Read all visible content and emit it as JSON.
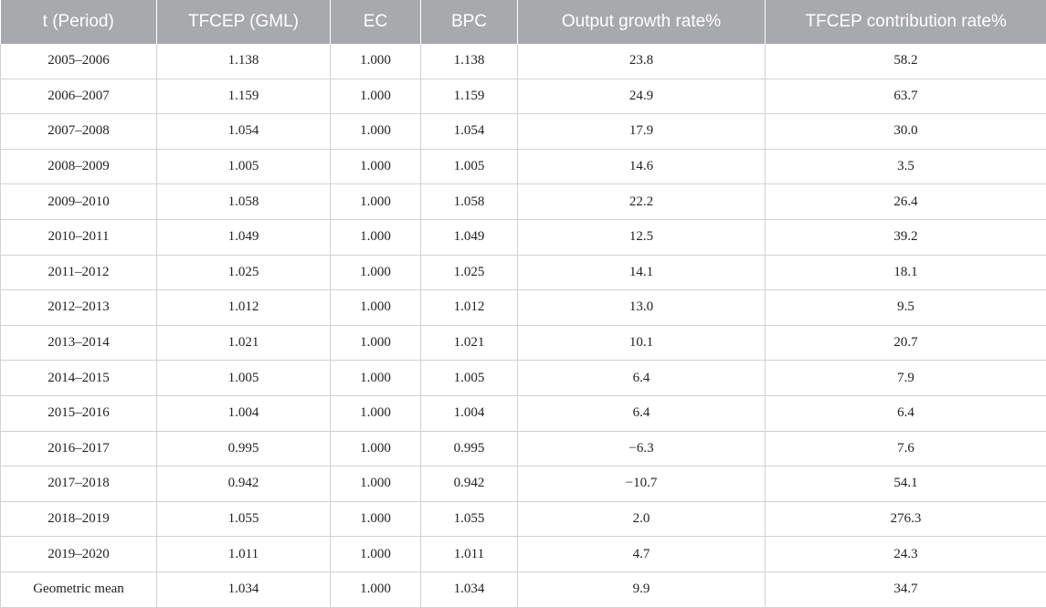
{
  "table": {
    "headers": [
      "t (Period)",
      "TFCEP (GML)",
      "EC",
      "BPC",
      "Output growth rate%",
      "TFCEP contribution rate%"
    ],
    "rows": [
      [
        "2005–2006",
        "1.138",
        "1.000",
        "1.138",
        "23.8",
        "58.2"
      ],
      [
        "2006–2007",
        "1.159",
        "1.000",
        "1.159",
        "24.9",
        "63.7"
      ],
      [
        "2007–2008",
        "1.054",
        "1.000",
        "1.054",
        "17.9",
        "30.0"
      ],
      [
        "2008–2009",
        "1.005",
        "1.000",
        "1.005",
        "14.6",
        "3.5"
      ],
      [
        "2009–2010",
        "1.058",
        "1.000",
        "1.058",
        "22.2",
        "26.4"
      ],
      [
        "2010–2011",
        "1.049",
        "1.000",
        "1.049",
        "12.5",
        "39.2"
      ],
      [
        "2011–2012",
        "1.025",
        "1.000",
        "1.025",
        "14.1",
        "18.1"
      ],
      [
        "2012–2013",
        "1.012",
        "1.000",
        "1.012",
        "13.0",
        "9.5"
      ],
      [
        "2013–2014",
        "1.021",
        "1.000",
        "1.021",
        "10.1",
        "20.7"
      ],
      [
        "2014–2015",
        "1.005",
        "1.000",
        "1.005",
        "6.4",
        "7.9"
      ],
      [
        "2015–2016",
        "1.004",
        "1.000",
        "1.004",
        "6.4",
        "6.4"
      ],
      [
        "2016–2017",
        "0.995",
        "1.000",
        "0.995",
        "−6.3",
        "7.6"
      ],
      [
        "2017–2018",
        "0.942",
        "1.000",
        "0.942",
        "−10.7",
        "54.1"
      ],
      [
        "2018–2019",
        "1.055",
        "1.000",
        "1.055",
        "2.0",
        "276.3"
      ],
      [
        "2019–2020",
        "1.011",
        "1.000",
        "1.011",
        "4.7",
        "24.3"
      ],
      [
        "Geometric mean",
        "1.034",
        "1.000",
        "1.034",
        "9.9",
        "34.7"
      ]
    ]
  }
}
